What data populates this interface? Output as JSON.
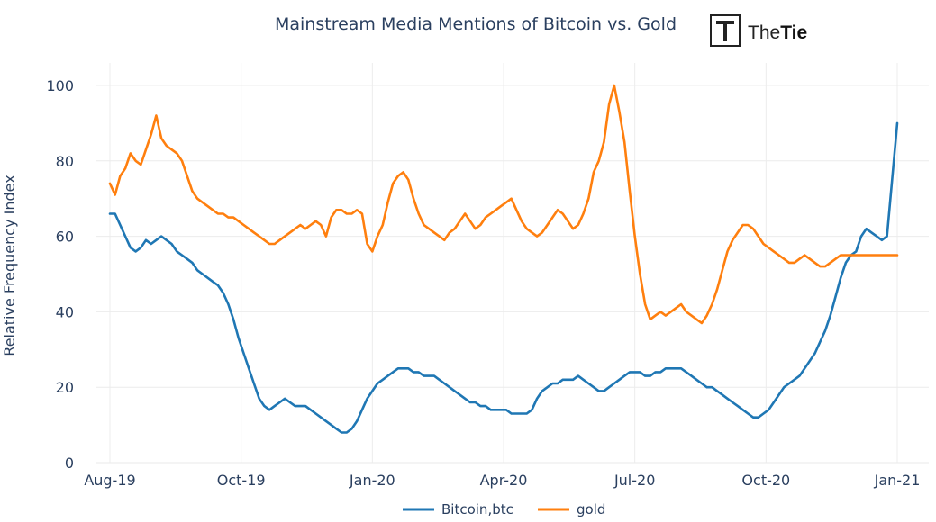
{
  "logo": {
    "part1": "The",
    "part2": "Tie"
  },
  "chart_data": {
    "type": "line",
    "title": "Mainstream Media Mentions of Bitcoin vs. Gold",
    "xlabel": "",
    "ylabel": "Relative Frequency Index",
    "ylim": [
      0,
      100
    ],
    "yticks": [
      0,
      20,
      40,
      60,
      80,
      100
    ],
    "x_range_days": [
      0,
      153
    ],
    "xticks": [
      {
        "day": 0,
        "label": "Aug-19"
      },
      {
        "day": 25.5,
        "label": "Oct-19"
      },
      {
        "day": 51,
        "label": "Jan-20"
      },
      {
        "day": 76.5,
        "label": "Apr-20"
      },
      {
        "day": 102,
        "label": "Jul-20"
      },
      {
        "day": 127.5,
        "label": "Oct-20"
      },
      {
        "day": 153,
        "label": "Jan-21"
      }
    ],
    "grid": true,
    "legend_position": "bottom-center",
    "series": [
      {
        "name": "Bitcoin,btc",
        "color": "#1f77b4",
        "x": [
          0,
          1,
          2,
          3,
          4,
          5,
          6,
          7,
          8,
          9,
          10,
          11,
          12,
          13,
          14,
          15,
          16,
          17,
          18,
          19,
          20,
          21,
          22,
          23,
          24,
          25,
          26,
          27,
          28,
          29,
          30,
          31,
          32,
          33,
          34,
          35,
          36,
          37,
          38,
          39,
          40,
          41,
          42,
          43,
          44,
          45,
          46,
          47,
          48,
          49,
          50,
          51,
          52,
          53,
          54,
          55,
          56,
          57,
          58,
          59,
          60,
          61,
          62,
          63,
          64,
          65,
          66,
          67,
          68,
          69,
          70,
          71,
          72,
          73,
          74,
          75,
          76,
          77,
          78,
          79,
          80,
          81,
          82,
          83,
          84,
          85,
          86,
          87,
          88,
          89,
          90,
          91,
          92,
          93,
          94,
          95,
          96,
          97,
          98,
          99,
          100,
          101,
          102,
          103,
          104,
          105,
          106,
          107,
          108,
          109,
          110,
          111,
          112,
          113,
          114,
          115,
          116,
          117,
          118,
          119,
          120,
          121,
          122,
          123,
          124,
          125,
          126,
          127,
          128,
          129,
          130,
          131,
          132,
          133,
          134,
          135,
          136,
          137,
          138,
          139,
          140,
          141,
          142,
          143,
          144,
          145,
          146,
          147,
          148,
          149,
          150,
          151,
          152,
          153
        ],
        "values": [
          66,
          66,
          63,
          60,
          57,
          56,
          57,
          59,
          58,
          59,
          60,
          59,
          58,
          56,
          55,
          54,
          53,
          51,
          50,
          49,
          48,
          47,
          45,
          42,
          38,
          33,
          29,
          25,
          21,
          17,
          15,
          14,
          15,
          16,
          17,
          16,
          15,
          15,
          15,
          14,
          13,
          12,
          11,
          10,
          9,
          8,
          8,
          9,
          11,
          14,
          17,
          19,
          21,
          22,
          23,
          24,
          25,
          25,
          25,
          24,
          24,
          23,
          23,
          23,
          22,
          21,
          20,
          19,
          18,
          17,
          16,
          16,
          15,
          15,
          14,
          14,
          14,
          14,
          13,
          13,
          13,
          13,
          14,
          17,
          19,
          20,
          21,
          21,
          22,
          22,
          22,
          23,
          22,
          21,
          20,
          19,
          19,
          20,
          21,
          22,
          23,
          24,
          24,
          24,
          23,
          23,
          24,
          24,
          25,
          25,
          25,
          25,
          24,
          23,
          22,
          21,
          20,
          20,
          19,
          18,
          17,
          16,
          15,
          14,
          13,
          12,
          12,
          13,
          14,
          16,
          18,
          20,
          21,
          22,
          23,
          25,
          27,
          29,
          32,
          35,
          39,
          44,
          49,
          53,
          55,
          56,
          60,
          62,
          61,
          60,
          59,
          60,
          75,
          90
        ]
      },
      {
        "name": "gold",
        "color": "#ff7f0e",
        "x": [
          0,
          1,
          2,
          3,
          4,
          5,
          6,
          7,
          8,
          9,
          10,
          11,
          12,
          13,
          14,
          15,
          16,
          17,
          18,
          19,
          20,
          21,
          22,
          23,
          24,
          25,
          26,
          27,
          28,
          29,
          30,
          31,
          32,
          33,
          34,
          35,
          36,
          37,
          38,
          39,
          40,
          41,
          42,
          43,
          44,
          45,
          46,
          47,
          48,
          49,
          50,
          51,
          52,
          53,
          54,
          55,
          56,
          57,
          58,
          59,
          60,
          61,
          62,
          63,
          64,
          65,
          66,
          67,
          68,
          69,
          70,
          71,
          72,
          73,
          74,
          75,
          76,
          77,
          78,
          79,
          80,
          81,
          82,
          83,
          84,
          85,
          86,
          87,
          88,
          89,
          90,
          91,
          92,
          93,
          94,
          95,
          96,
          97,
          98,
          99,
          100,
          101,
          102,
          103,
          104,
          105,
          106,
          107,
          108,
          109,
          110,
          111,
          112,
          113,
          114,
          115,
          116,
          117,
          118,
          119,
          120,
          121,
          122,
          123,
          124,
          125,
          126,
          127,
          128,
          129,
          130,
          131,
          132,
          133,
          134,
          135,
          136,
          137,
          138,
          139,
          140,
          141,
          142,
          143,
          144,
          145,
          146,
          147,
          148,
          149,
          150,
          151,
          152,
          153
        ],
        "values": [
          74,
          71,
          76,
          78,
          82,
          80,
          79,
          83,
          87,
          92,
          86,
          84,
          83,
          82,
          80,
          76,
          72,
          70,
          69,
          68,
          67,
          66,
          66,
          65,
          65,
          64,
          63,
          62,
          61,
          60,
          59,
          58,
          58,
          59,
          60,
          61,
          62,
          63,
          62,
          63,
          64,
          63,
          60,
          65,
          67,
          67,
          66,
          66,
          67,
          66,
          58,
          56,
          60,
          63,
          69,
          74,
          76,
          77,
          75,
          70,
          66,
          63,
          62,
          61,
          60,
          59,
          61,
          62,
          64,
          66,
          64,
          62,
          63,
          65,
          66,
          67,
          68,
          69,
          70,
          67,
          64,
          62,
          61,
          60,
          61,
          63,
          65,
          67,
          66,
          64,
          62,
          63,
          66,
          70,
          77,
          80,
          85,
          95,
          100,
          93,
          85,
          72,
          60,
          50,
          42,
          38,
          39,
          40,
          39,
          40,
          41,
          42,
          40,
          39,
          38,
          37,
          39,
          42,
          46,
          51,
          56,
          59,
          61,
          63,
          63,
          62,
          60,
          58,
          57,
          56,
          55,
          54,
          53,
          53,
          54,
          55,
          54,
          53,
          52,
          52,
          53,
          54,
          55,
          55,
          55,
          55,
          55,
          55,
          55,
          55,
          55,
          55,
          55,
          55
        ]
      }
    ]
  }
}
